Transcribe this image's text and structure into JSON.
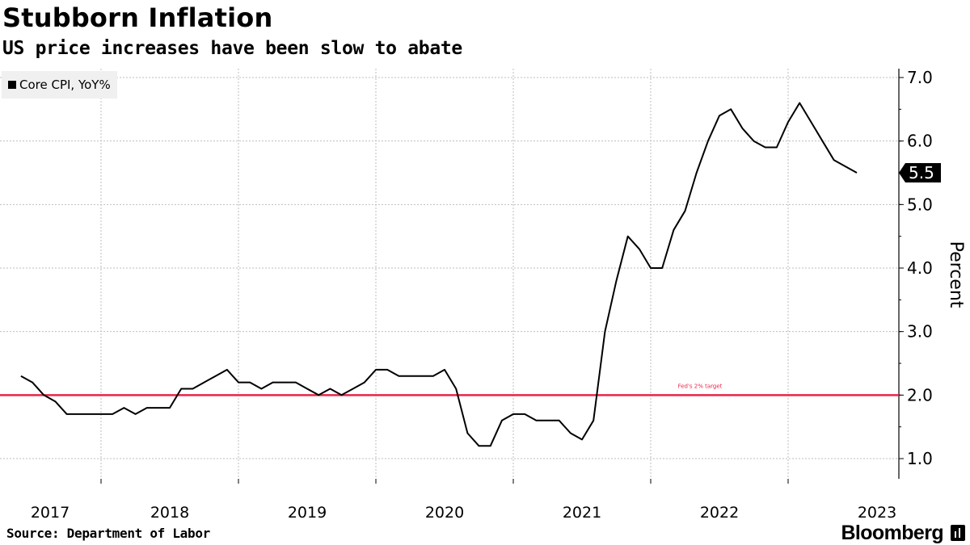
{
  "header": {
    "title": "Stubborn Inflation",
    "subtitle": "US price increases have been slow to abate"
  },
  "footer": {
    "source": "Source:  Department of Labor",
    "brand": "Bloomberg"
  },
  "colors": {
    "series": "#000000",
    "target": "#e8254a",
    "grid": "#bdbdbd",
    "legend_bg": "#f0f0f0"
  },
  "chart_data": {
    "type": "line",
    "title": "Stubborn Inflation",
    "subtitle": "US price increases have been slow to abate",
    "xlabel": "",
    "ylabel": "Percent",
    "ylim": [
      0.7,
      7.1
    ],
    "xlim": [
      2017.0,
      2023.25
    ],
    "y_ticks": [
      1.0,
      2.0,
      3.0,
      4.0,
      5.0,
      6.0,
      7.0
    ],
    "y_tick_labels": [
      "1.0",
      "2.0",
      "3.0",
      "4.0",
      "5.0",
      "6.0",
      "7.0"
    ],
    "x_ticks": [
      2017,
      2018,
      2019,
      2020,
      2021,
      2022,
      2023
    ],
    "x_tick_labels": [
      "2017",
      "2018",
      "2019",
      "2020",
      "2021",
      "2022",
      "2023"
    ],
    "x_grid_years": [
      2017.5,
      2018.5,
      2019.5,
      2020.5,
      2021.5,
      2022.5
    ],
    "grid": true,
    "legend": {
      "position": "top-left",
      "entries": [
        "Core CPI, YoY%"
      ]
    },
    "series": [
      {
        "name": "Core CPI, YoY%",
        "values": [
          2.3,
          2.2,
          2.0,
          1.9,
          1.7,
          1.7,
          1.7,
          1.7,
          1.7,
          1.8,
          1.7,
          1.8,
          1.8,
          1.8,
          2.1,
          2.1,
          2.2,
          2.3,
          2.4,
          2.2,
          2.2,
          2.1,
          2.2,
          2.2,
          2.2,
          2.1,
          2.0,
          2.1,
          2.0,
          2.1,
          2.2,
          2.4,
          2.4,
          2.3,
          2.3,
          2.3,
          2.3,
          2.4,
          2.1,
          1.4,
          1.2,
          1.2,
          1.6,
          1.7,
          1.7,
          1.6,
          1.6,
          1.6,
          1.4,
          1.3,
          1.6,
          3.0,
          3.8,
          4.5,
          4.3,
          4.0,
          4.0,
          4.6,
          4.9,
          5.5,
          6.0,
          6.4,
          6.5,
          6.2,
          6.0,
          5.9,
          5.9,
          6.3,
          6.6,
          6.3,
          6.0,
          5.7,
          5.6,
          5.5
        ]
      }
    ],
    "x_start": 2016.917,
    "x_step": 0.08333,
    "annotations": [
      {
        "text": "Fed's 2% target",
        "y": 2.0
      }
    ],
    "last_value_label": "5.5",
    "reference_line": 2.0
  }
}
